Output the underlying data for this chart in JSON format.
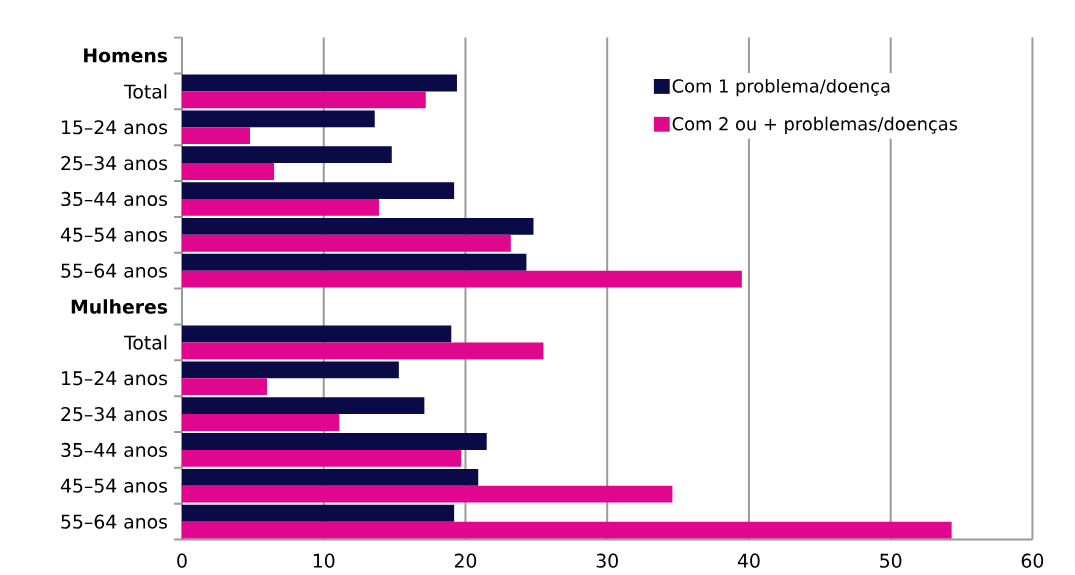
{
  "chart_data": {
    "type": "bar",
    "orientation": "horizontal",
    "categories": [
      "Homens",
      "Total",
      "15–24 anos",
      "25–34 anos",
      "35–44 anos",
      "45–54 anos",
      "55–64 anos",
      "Mulheres",
      "Total",
      "15–24 anos",
      "25–34 anos",
      "35–44 anos",
      "45–54 anos",
      "55–64 anos"
    ],
    "series": [
      {
        "name": "Com 1 problema/doença",
        "color": "#0a0a46",
        "values": [
          null,
          19.4,
          13.6,
          14.8,
          19.2,
          24.8,
          24.3,
          null,
          19.0,
          15.3,
          17.1,
          21.5,
          20.9,
          19.2
        ]
      },
      {
        "name": "Com 2 ou + problemas/doenças",
        "color": "#e0078e",
        "values": [
          null,
          17.2,
          4.8,
          6.5,
          13.9,
          23.2,
          39.5,
          null,
          25.5,
          6.0,
          11.1,
          19.7,
          34.6,
          54.3
        ]
      }
    ],
    "xlim": [
      0,
      60
    ],
    "xticks": [
      0,
      10,
      20,
      30,
      40,
      50,
      60
    ],
    "grid": "x",
    "legend": "top right"
  }
}
